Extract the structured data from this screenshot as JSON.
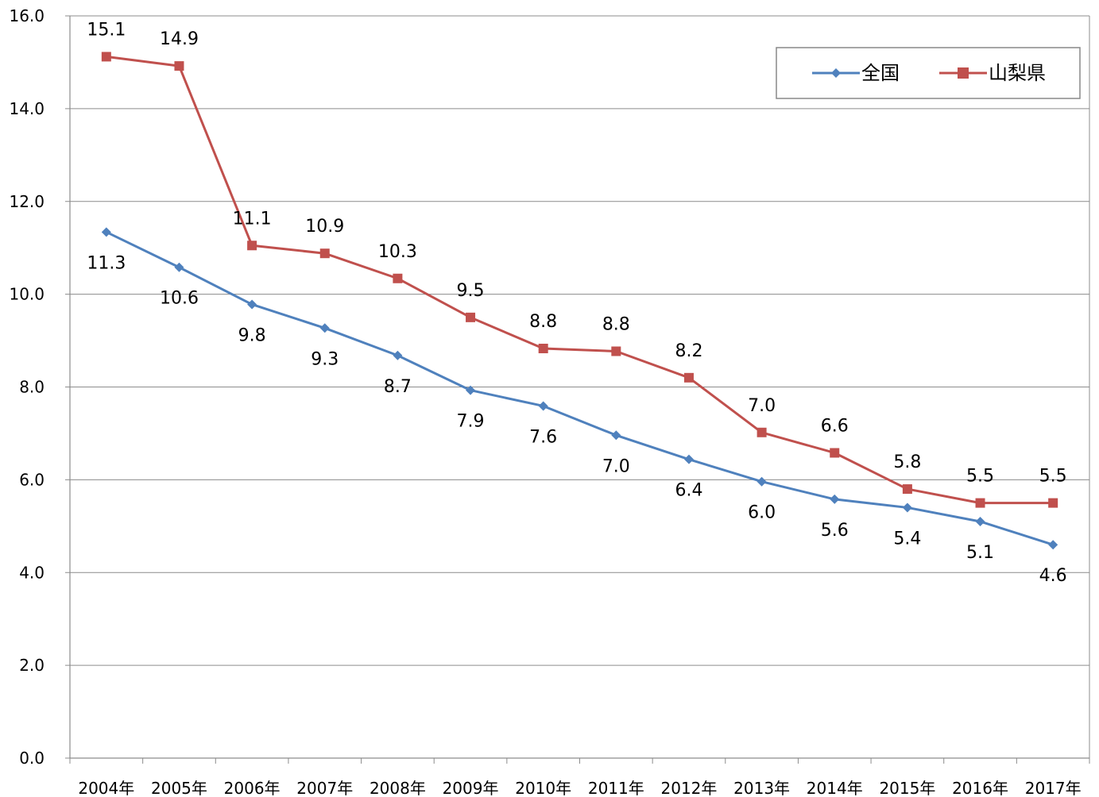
{
  "chart_data": {
    "type": "line",
    "title": "",
    "xlabel": "",
    "ylabel": "",
    "categories": [
      "2004年",
      "2005年",
      "2006年",
      "2007年",
      "2008年",
      "2009年",
      "2010年",
      "2011年",
      "2012年",
      "2013年",
      "2014年",
      "2015年",
      "2016年",
      "2017年"
    ],
    "ylim": [
      0,
      16
    ],
    "yticks": [
      "0.0",
      "2.0",
      "4.0",
      "6.0",
      "8.0",
      "10.0",
      "12.0",
      "14.0",
      "16.0"
    ],
    "grid": true,
    "legend_position": "top-right",
    "series": [
      {
        "name": "全国",
        "color": "#4F81BD",
        "marker": "diamond",
        "values": [
          11.34,
          10.58,
          9.78,
          9.27,
          8.68,
          7.93,
          7.59,
          6.96,
          6.44,
          5.96,
          5.58,
          5.4,
          5.1,
          4.6
        ],
        "labels": [
          "11.3",
          "10.6",
          "9.8",
          "9.3",
          "8.7",
          "7.9",
          "7.6",
          "7.0",
          "6.4",
          "6.0",
          "5.6",
          "5.4",
          "5.1",
          "4.6"
        ],
        "label_position": "below"
      },
      {
        "name": "山梨県",
        "color": "#C0504D",
        "marker": "square",
        "values": [
          15.12,
          14.92,
          11.05,
          10.88,
          10.34,
          9.5,
          8.83,
          8.77,
          8.2,
          7.02,
          6.58,
          5.8,
          5.5,
          5.5
        ],
        "labels": [
          "15.1",
          "14.9",
          "11.1",
          "10.9",
          "10.3",
          "9.5",
          "8.8",
          "8.8",
          "8.2",
          "7.0",
          "6.6",
          "5.8",
          "5.5",
          "5.5"
        ],
        "label_position": "above"
      }
    ]
  }
}
